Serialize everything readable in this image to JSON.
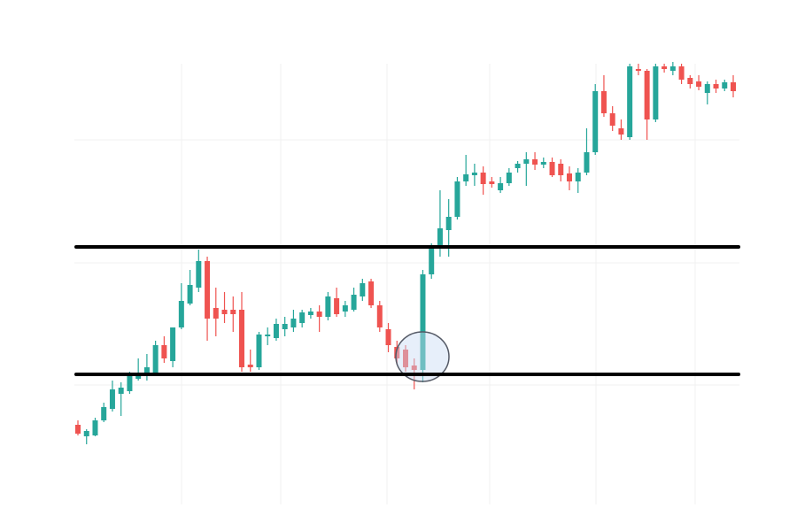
{
  "chart_data": {
    "type": "candlestick",
    "open": [
      120,
      107,
      108,
      125,
      138,
      155,
      158,
      172,
      175,
      178,
      210,
      192,
      230,
      257,
      275,
      305,
      252,
      250,
      250,
      250,
      188,
      185,
      220,
      218,
      228,
      230,
      235,
      244,
      248,
      242,
      263,
      248,
      250,
      265,
      282,
      255,
      228,
      208,
      205,
      187,
      182,
      290,
      322,
      340,
      355,
      395,
      402,
      405,
      395,
      385,
      393,
      410,
      415,
      420,
      414,
      417,
      415,
      404,
      395,
      405,
      428,
      497,
      472,
      455,
      445,
      522,
      520,
      465,
      525,
      520,
      525,
      512,
      508,
      495,
      505,
      500,
      507
    ],
    "high": [
      125,
      115,
      128,
      145,
      170,
      168,
      180,
      195,
      200,
      215,
      220,
      230,
      280,
      295,
      318,
      310,
      275,
      270,
      265,
      270,
      205,
      225,
      230,
      240,
      242,
      250,
      250,
      252,
      255,
      270,
      275,
      260,
      275,
      285,
      285,
      260,
      235,
      215,
      210,
      195,
      295,
      325,
      385,
      375,
      400,
      425,
      415,
      412,
      400,
      400,
      410,
      418,
      428,
      428,
      422,
      422,
      420,
      412,
      410,
      455,
      505,
      515,
      480,
      465,
      528,
      528,
      522,
      528,
      528,
      530,
      528,
      515,
      515,
      508,
      510,
      510,
      515
    ],
    "low": [
      108,
      98,
      107,
      123,
      135,
      130,
      155,
      170,
      170,
      175,
      190,
      185,
      228,
      255,
      270,
      215,
      220,
      235,
      225,
      180,
      180,
      182,
      210,
      215,
      220,
      225,
      230,
      240,
      225,
      238,
      242,
      242,
      248,
      260,
      252,
      225,
      202,
      188,
      180,
      160,
      168,
      285,
      310,
      310,
      352,
      390,
      390,
      380,
      388,
      382,
      390,
      405,
      390,
      408,
      410,
      400,
      395,
      385,
      382,
      402,
      425,
      468,
      452,
      442,
      442,
      515,
      442,
      462,
      518,
      515,
      505,
      500,
      498,
      482,
      495,
      497,
      490
    ],
    "close": [
      110,
      113,
      125,
      140,
      160,
      162,
      175,
      175,
      185,
      210,
      195,
      230,
      260,
      278,
      305,
      240,
      240,
      245,
      245,
      185,
      185,
      222,
      222,
      234,
      234,
      240,
      247,
      248,
      242,
      265,
      245,
      255,
      267,
      280,
      255,
      230,
      210,
      195,
      185,
      182,
      290,
      320,
      342,
      355,
      395,
      403,
      405,
      392,
      392,
      393,
      405,
      415,
      420,
      414,
      417,
      402,
      402,
      395,
      405,
      428,
      497,
      472,
      458,
      448,
      525,
      520,
      465,
      525,
      522,
      525,
      510,
      505,
      502,
      505,
      500,
      507,
      497
    ],
    "up_color": "#26a69a",
    "down_color": "#ef5350",
    "ylim": [
      0,
      600
    ],
    "levels": [
      321,
      177
    ]
  }
}
